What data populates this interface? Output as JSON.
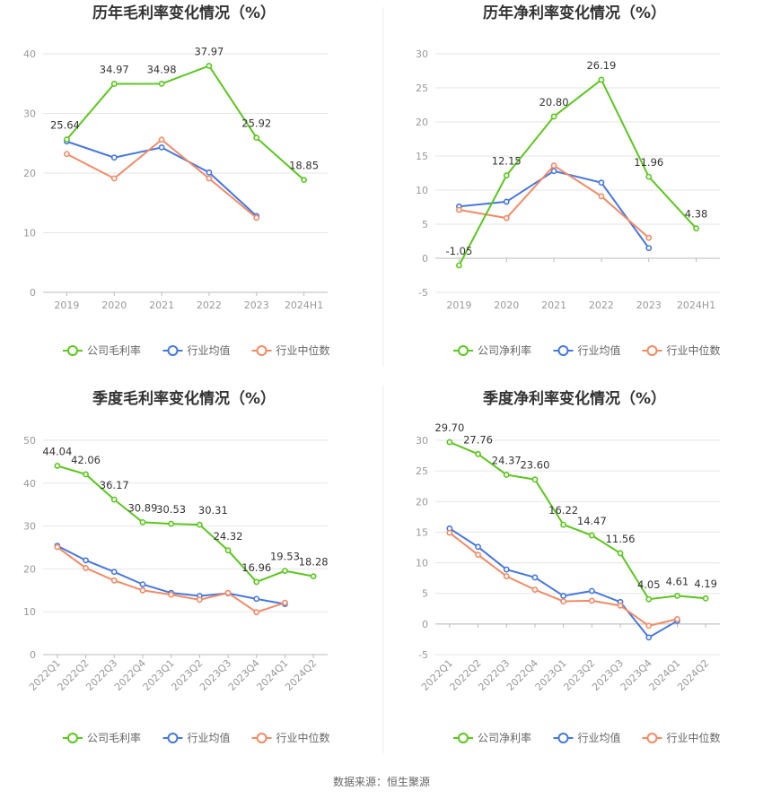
{
  "source": "数据来源：恒生聚源",
  "colors": {
    "company": "#5bc61f",
    "avg": "#4677de",
    "median": "#f28a65"
  },
  "legend": {
    "gross": [
      "公司毛利率",
      "行业均值",
      "行业中位数"
    ],
    "net": [
      "公司净利率",
      "行业均值",
      "行业中位数"
    ]
  },
  "chart_data": [
    {
      "type": "line",
      "title": "历年毛利率变化情况（%）",
      "categories": [
        "2019",
        "2020",
        "2021",
        "2022",
        "2023",
        "2024H1"
      ],
      "ylim": [
        0,
        40
      ],
      "yticks": [
        0,
        10,
        20,
        30,
        40
      ],
      "legend_position": "bottom",
      "rotate_x": false,
      "series": [
        {
          "name": "公司毛利率",
          "key": "company",
          "labels": true,
          "values": [
            25.64,
            34.97,
            34.98,
            37.97,
            25.92,
            18.85
          ]
        },
        {
          "name": "行业均值",
          "key": "avg",
          "labels": false,
          "values": [
            25.3,
            22.6,
            24.3,
            20.1,
            12.8,
            null
          ]
        },
        {
          "name": "行业中位数",
          "key": "median",
          "labels": false,
          "values": [
            23.2,
            19.1,
            25.6,
            19.1,
            12.5,
            null
          ]
        }
      ]
    },
    {
      "type": "line",
      "title": "历年净利率变化情况（%）",
      "categories": [
        "2019",
        "2020",
        "2021",
        "2022",
        "2023",
        "2024H1"
      ],
      "ylim": [
        -5,
        30
      ],
      "yticks": [
        -5,
        0,
        5,
        10,
        15,
        20,
        25,
        30
      ],
      "legend_position": "bottom",
      "rotate_x": false,
      "series": [
        {
          "name": "公司净利率",
          "key": "company",
          "labels": true,
          "values": [
            -1.05,
            12.15,
            20.8,
            26.19,
            11.96,
            4.38
          ]
        },
        {
          "name": "行业均值",
          "key": "avg",
          "labels": false,
          "values": [
            7.6,
            8.3,
            12.8,
            11.1,
            1.5,
            null
          ]
        },
        {
          "name": "行业中位数",
          "key": "median",
          "labels": false,
          "values": [
            7.1,
            5.9,
            13.6,
            9.1,
            3.0,
            null
          ]
        }
      ]
    },
    {
      "type": "line",
      "title": "季度毛利率变化情况（%）",
      "categories": [
        "2022Q1",
        "2022Q2",
        "2022Q3",
        "2022Q4",
        "2023Q1",
        "2023Q2",
        "2023Q3",
        "2023Q4",
        "2024Q1",
        "2024Q2"
      ],
      "ylim": [
        0,
        50
      ],
      "yticks": [
        0,
        10,
        20,
        30,
        40,
        50
      ],
      "legend_position": "bottom",
      "rotate_x": true,
      "series": [
        {
          "name": "公司毛利率",
          "key": "company",
          "labels": true,
          "values": [
            44.04,
            42.06,
            36.17,
            30.89,
            30.53,
            30.31,
            24.32,
            16.96,
            19.53,
            18.28
          ]
        },
        {
          "name": "行业均值",
          "key": "avg",
          "labels": false,
          "values": [
            25.4,
            22.0,
            19.3,
            16.4,
            14.4,
            13.7,
            14.3,
            13.0,
            11.8,
            null
          ]
        },
        {
          "name": "行业中位数",
          "key": "median",
          "labels": false,
          "values": [
            25.1,
            20.2,
            17.3,
            15.0,
            14.0,
            12.8,
            14.4,
            9.9,
            12.1,
            null
          ]
        }
      ]
    },
    {
      "type": "line",
      "title": "季度净利率变化情况（%）",
      "categories": [
        "2022Q1",
        "2022Q2",
        "2022Q3",
        "2022Q4",
        "2023Q1",
        "2023Q2",
        "2023Q3",
        "2023Q4",
        "2024Q1",
        "2024Q2"
      ],
      "ylim": [
        -5,
        30
      ],
      "yticks": [
        -5,
        0,
        5,
        10,
        15,
        20,
        25,
        30
      ],
      "legend_position": "bottom",
      "rotate_x": true,
      "series": [
        {
          "name": "公司净利率",
          "key": "company",
          "labels": true,
          "values": [
            29.7,
            27.76,
            24.37,
            23.6,
            16.22,
            14.47,
            11.56,
            4.05,
            4.61,
            4.19
          ]
        },
        {
          "name": "行业均值",
          "key": "avg",
          "labels": false,
          "values": [
            15.6,
            12.6,
            8.9,
            7.6,
            4.6,
            5.4,
            3.6,
            -2.2,
            0.5,
            null
          ]
        },
        {
          "name": "行业中位数",
          "key": "median",
          "labels": false,
          "values": [
            14.9,
            11.3,
            7.8,
            5.6,
            3.7,
            3.8,
            3.0,
            -0.3,
            0.8,
            null
          ]
        }
      ]
    }
  ]
}
